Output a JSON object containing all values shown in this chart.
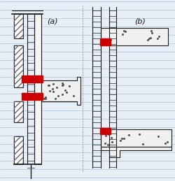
{
  "bg_color": "#dce9f5",
  "line_color": "#1a1a1a",
  "red_color": "#cc0000",
  "hatch_color": "#333333",
  "label_a": "(a)",
  "label_b": "(b)",
  "fig_width": 2.5,
  "fig_height": 2.59,
  "dpi": 100
}
